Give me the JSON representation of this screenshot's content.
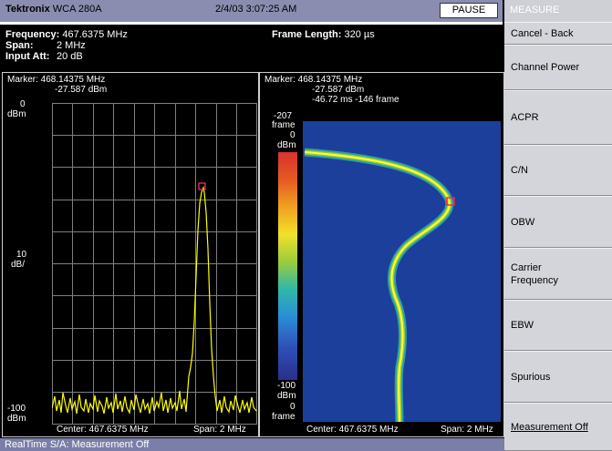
{
  "header": {
    "brand": "Tektronix",
    "model": "WCA 280A",
    "datetime": "2/4/03 3:07:25 AM",
    "pause_label": "PAUSE"
  },
  "info": {
    "frequency_label": "Frequency:",
    "frequency_value": "467.6375 MHz",
    "span_label": "Span:",
    "span_value": "2 MHz",
    "input_att_label": "Input Att:",
    "input_att_value": "20 dB",
    "frame_length_label": "Frame Length:",
    "frame_length_value": "320 µs"
  },
  "left_plot": {
    "marker_line1": "Marker: 468.14375 MHz",
    "marker_line2": "-27.587 dBm",
    "top_value": "0",
    "top_unit": "dBm",
    "scale_value": "10",
    "scale_unit": "dB/",
    "bottom_value": "-100",
    "bottom_unit": "dBm",
    "center": "Center: 467.6375 MHz",
    "span": "Span: 2 MHz"
  },
  "right_plot": {
    "marker_line1": "Marker: 468.14375 MHz",
    "marker_line2": "-27.587 dBm",
    "marker_line3": "-46.72 ms  -146 frame",
    "top_frame": "-207",
    "top_frame_unit": "frame",
    "scale_top": "0",
    "scale_top_unit": "dBm",
    "scale_bottom": "-100",
    "scale_bottom_unit": "dBm",
    "bottom_frame": "0",
    "bottom_frame_unit": "frame",
    "center": "Center: 467.6375 MHz",
    "span": "Span: 2 MHz"
  },
  "menu": {
    "title": "MEASURE",
    "items": [
      "Cancel - Back",
      "Channel Power",
      "ACPR",
      "C/N",
      "OBW",
      "Carrier Frequency",
      "EBW",
      "Spurious",
      "Measurement Off"
    ]
  },
  "status": {
    "text": "RealTime S/A: Measurement Off"
  },
  "colors": {
    "trace": "#ffff00",
    "grid": "#7f7f7f",
    "spectrogram_bg": "#1c3f9c",
    "header_bg": "#8a8db0"
  }
}
